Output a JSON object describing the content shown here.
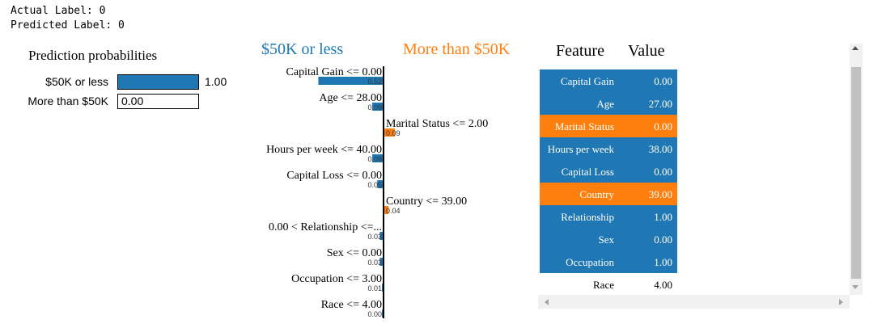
{
  "labels": {
    "actual": "Actual Label: 0",
    "predicted": "Predicted Label: 0"
  },
  "colors": {
    "negative": "#1f77b4",
    "positive": "#ff7f0e"
  },
  "chart_data": [
    {
      "type": "bar",
      "title": "Prediction probabilities",
      "orientation": "horizontal",
      "categories": [
        "$50K or less",
        "More than $50K"
      ],
      "values": [
        1.0,
        0.0
      ],
      "value_labels": [
        "1.00",
        "0.00"
      ],
      "xlim": [
        0,
        1
      ]
    },
    {
      "type": "bar",
      "orientation": "horizontal",
      "negative_label": "$50K or less",
      "positive_label": "More than $50K",
      "features": [
        {
          "label": "Capital Gain <= 0.00",
          "value": -0.52,
          "value_label": "0.52"
        },
        {
          "label": "Age <= 28.00",
          "value": -0.09,
          "value_label": "0.09"
        },
        {
          "label": "Marital Status <= 2.00",
          "value": 0.09,
          "value_label": "0.09"
        },
        {
          "label": "Hours per week <= 40.00",
          "value": -0.09,
          "value_label": "0.09"
        },
        {
          "label": "Capital Loss <= 0.00",
          "value": -0.05,
          "value_label": "0.05"
        },
        {
          "label": "Country <= 39.00",
          "value": 0.04,
          "value_label": "0.04"
        },
        {
          "label": "0.00 < Relationship <=...",
          "value": -0.03,
          "value_label": "0.03"
        },
        {
          "label": "Sex <= 0.00",
          "value": -0.03,
          "value_label": "0.03"
        },
        {
          "label": "Occupation <= 3.00",
          "value": -0.01,
          "value_label": "0.01"
        },
        {
          "label": "Race <= 4.00",
          "value": -0.0,
          "value_label": "0.00"
        }
      ]
    },
    {
      "type": "table",
      "columns": [
        "Feature",
        "Value"
      ],
      "rows": [
        {
          "feature": "Capital Gain",
          "value": "0.00",
          "highlight": "negative"
        },
        {
          "feature": "Age",
          "value": "27.00",
          "highlight": "negative"
        },
        {
          "feature": "Marital Status",
          "value": "0.00",
          "highlight": "positive"
        },
        {
          "feature": "Hours per week",
          "value": "38.00",
          "highlight": "negative"
        },
        {
          "feature": "Capital Loss",
          "value": "0.00",
          "highlight": "negative"
        },
        {
          "feature": "Country",
          "value": "39.00",
          "highlight": "positive"
        },
        {
          "feature": "Relationship",
          "value": "1.00",
          "highlight": "negative"
        },
        {
          "feature": "Sex",
          "value": "0.00",
          "highlight": "negative"
        },
        {
          "feature": "Occupation",
          "value": "1.00",
          "highlight": "negative"
        },
        {
          "feature": "Race",
          "value": "4.00",
          "highlight": "none"
        }
      ]
    }
  ]
}
